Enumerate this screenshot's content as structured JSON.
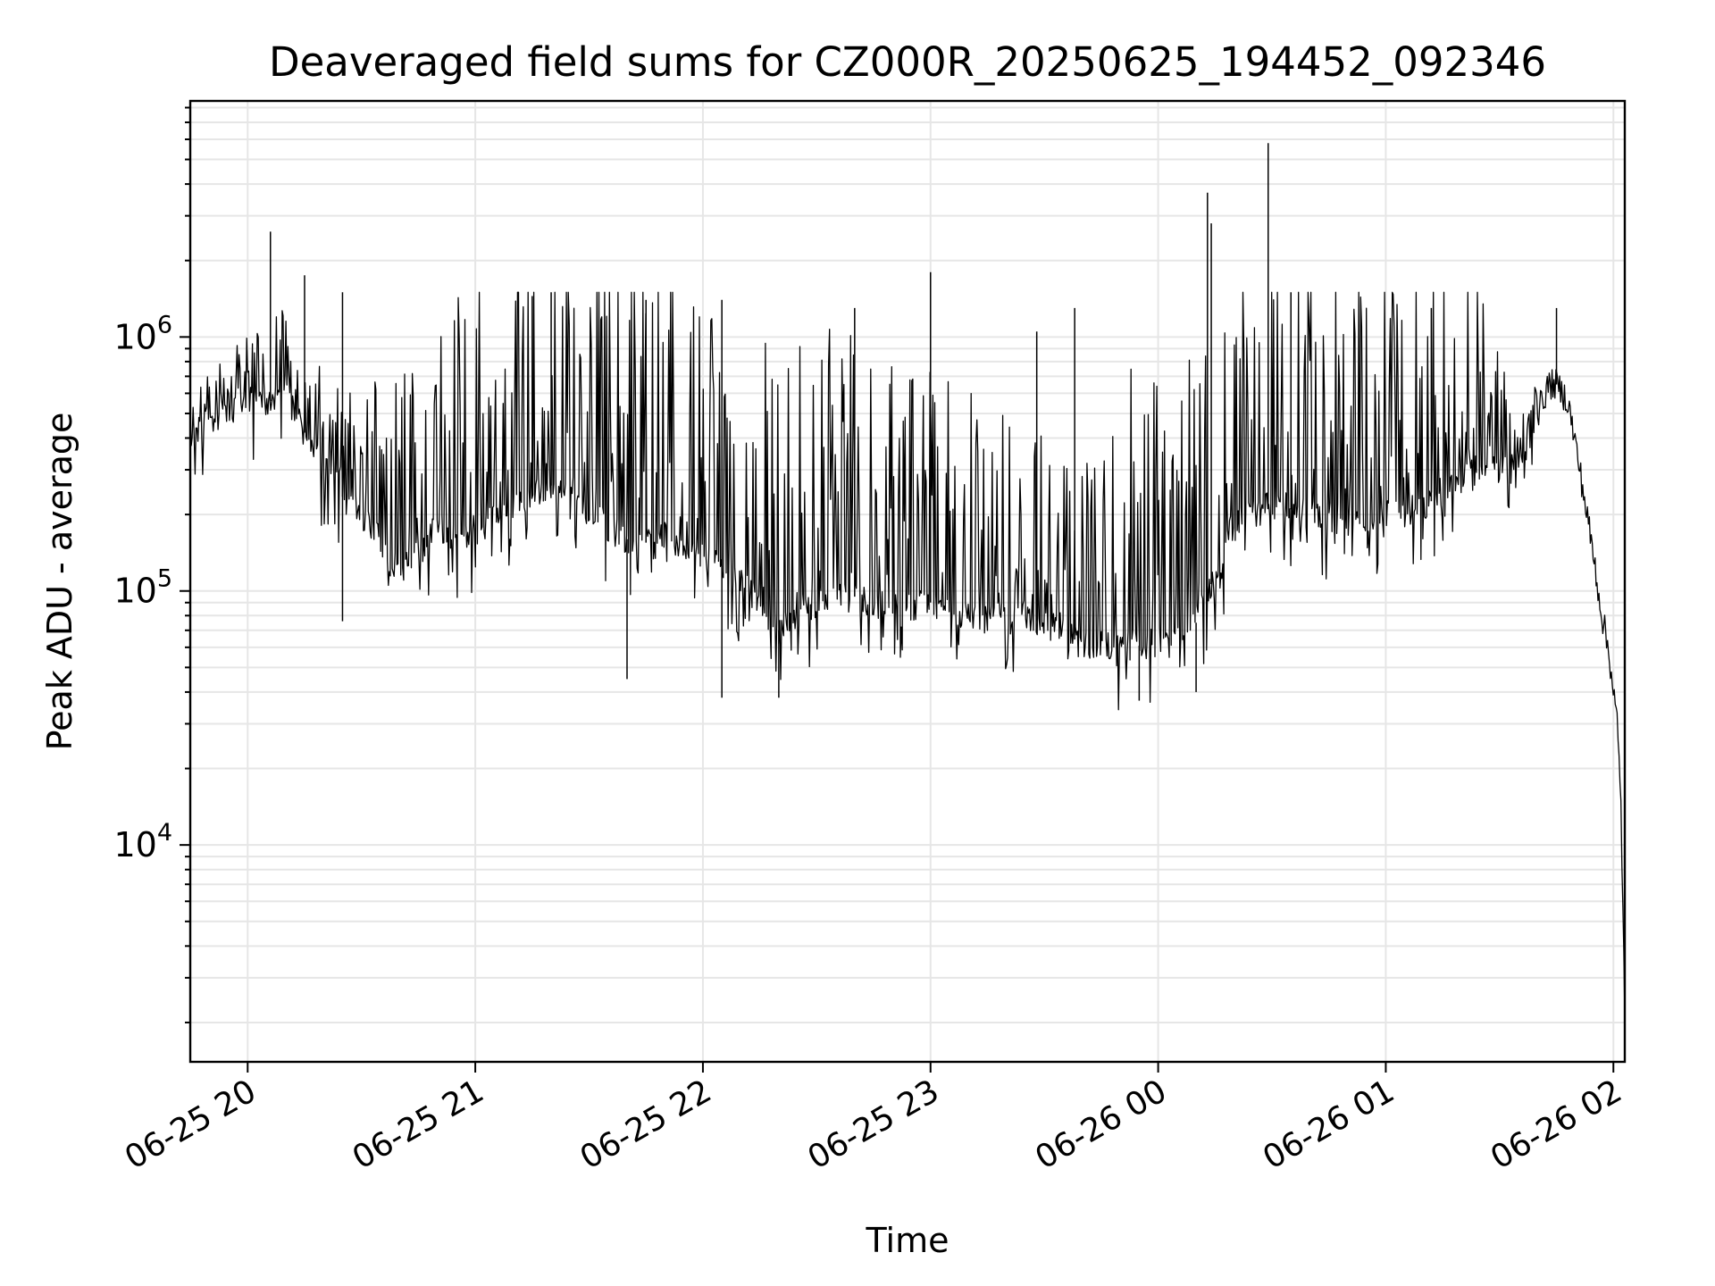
{
  "chart_data": {
    "type": "line",
    "title": "Deaveraged field sums for CZ000R_20250625_194452_092346",
    "xlabel": "Time",
    "ylabel": "Peak ADU - average",
    "yscale": "log",
    "ylim": [
      1400,
      8500000
    ],
    "xlim": [
      "2025-06-25 19:44:52",
      "2025-06-26 02:03:00"
    ],
    "x_ticks": [
      "06-25 20",
      "06-25 21",
      "06-25 22",
      "06-25 23",
      "06-26 00",
      "06-26 01",
      "06-26 02"
    ],
    "x_tick_times": [
      "2025-06-25 20:00",
      "2025-06-25 21:00",
      "2025-06-25 22:00",
      "2025-06-25 23:00",
      "2025-06-26 00:00",
      "2025-06-26 01:00",
      "2025-06-26 02:00"
    ],
    "y_ticks": [
      {
        "base": "10",
        "exp": "4",
        "value": 10000
      },
      {
        "base": "10",
        "exp": "5",
        "value": 100000
      },
      {
        "base": "10",
        "exp": "6",
        "value": 1000000
      }
    ],
    "grid": true,
    "series": [
      {
        "color": "#000000",
        "x": [
          "2025-06-25 19:44:52",
          "2025-06-25 19:50",
          "2025-06-25 19:55",
          "2025-06-25 20:00",
          "2025-06-25 20:05",
          "2025-06-25 20:10",
          "2025-06-25 20:15",
          "2025-06-25 20:20",
          "2025-06-25 20:25",
          "2025-06-25 20:30",
          "2025-06-25 20:35",
          "2025-06-25 20:40",
          "2025-06-25 20:45",
          "2025-06-25 20:50",
          "2025-06-25 20:55",
          "2025-06-25 21:00",
          "2025-06-25 21:10",
          "2025-06-25 21:20",
          "2025-06-25 21:30",
          "2025-06-25 21:40",
          "2025-06-25 21:50",
          "2025-06-25 22:00",
          "2025-06-25 22:10",
          "2025-06-25 22:20",
          "2025-06-25 22:30",
          "2025-06-25 22:40",
          "2025-06-25 22:50",
          "2025-06-25 23:00",
          "2025-06-25 23:10",
          "2025-06-25 23:20",
          "2025-06-25 23:30",
          "2025-06-25 23:40",
          "2025-06-25 23:50",
          "2025-06-26 00:00",
          "2025-06-26 00:10",
          "2025-06-26 00:20",
          "2025-06-26 00:30",
          "2025-06-26 00:40",
          "2025-06-26 00:50",
          "2025-06-26 01:00",
          "2025-06-26 01:10",
          "2025-06-26 01:20",
          "2025-06-26 01:25",
          "2025-06-26 01:30",
          "2025-06-26 01:35",
          "2025-06-26 01:40",
          "2025-06-26 01:43",
          "2025-06-26 01:45",
          "2025-06-26 01:48",
          "2025-06-26 01:50",
          "2025-06-26 01:52",
          "2025-06-26 01:55",
          "2025-06-26 01:57",
          "2025-06-26 01:59",
          "2025-06-26 02:01",
          "2025-06-26 02:02",
          "2025-06-26 02:03"
        ],
        "y": [
          350000,
          480000,
          520000,
          560000,
          550000,
          600000,
          420000,
          300000,
          250000,
          200000,
          160000,
          120000,
          140000,
          180000,
          160000,
          170000,
          220000,
          260000,
          200000,
          160000,
          150000,
          140000,
          110000,
          70000,
          90000,
          95000,
          85000,
          90000,
          80000,
          80000,
          75000,
          62000,
          60000,
          62000,
          75000,
          180000,
          220000,
          200000,
          190000,
          200000,
          210000,
          300000,
          290000,
          300000,
          280000,
          500000,
          650000,
          650000,
          560000,
          380000,
          250000,
          130000,
          80000,
          55000,
          30000,
          14000,
          2300
        ],
        "spikes": [
          {
            "x": "2025-06-25 20:06",
            "y": 2600000
          },
          {
            "x": "2025-06-25 20:15",
            "y": 1750000
          },
          {
            "x": "2025-06-25 20:25",
            "y": 1500000
          },
          {
            "x": "2025-06-25 21:15",
            "y": 1450000
          },
          {
            "x": "2025-06-25 21:20",
            "y": 1500000
          },
          {
            "x": "2025-06-25 21:45",
            "y": 1400000
          },
          {
            "x": "2025-06-25 22:05",
            "y": 1400000
          },
          {
            "x": "2025-06-25 22:40",
            "y": 1300000
          },
          {
            "x": "2025-06-25 23:00",
            "y": 1800000
          },
          {
            "x": "2025-06-25 23:28",
            "y": 1050000
          },
          {
            "x": "2025-06-25 23:38",
            "y": 1300000
          },
          {
            "x": "2025-06-26 00:13",
            "y": 3700000
          },
          {
            "x": "2025-06-26 00:14",
            "y": 2800000
          },
          {
            "x": "2025-06-26 00:29",
            "y": 5800000
          },
          {
            "x": "2025-06-26 00:35",
            "y": 1500000
          },
          {
            "x": "2025-06-26 01:12",
            "y": 1300000
          },
          {
            "x": "2025-06-26 01:45",
            "y": 1300000
          }
        ],
        "dips": [
          {
            "x": "2025-06-25 20:25",
            "y": 76000
          },
          {
            "x": "2025-06-25 21:40",
            "y": 45000
          },
          {
            "x": "2025-06-25 22:05",
            "y": 38000
          },
          {
            "x": "2025-06-25 22:20",
            "y": 38000
          },
          {
            "x": "2025-06-25 23:55",
            "y": 37000
          },
          {
            "x": "2025-06-26 00:10",
            "y": 40000
          }
        ]
      }
    ]
  }
}
